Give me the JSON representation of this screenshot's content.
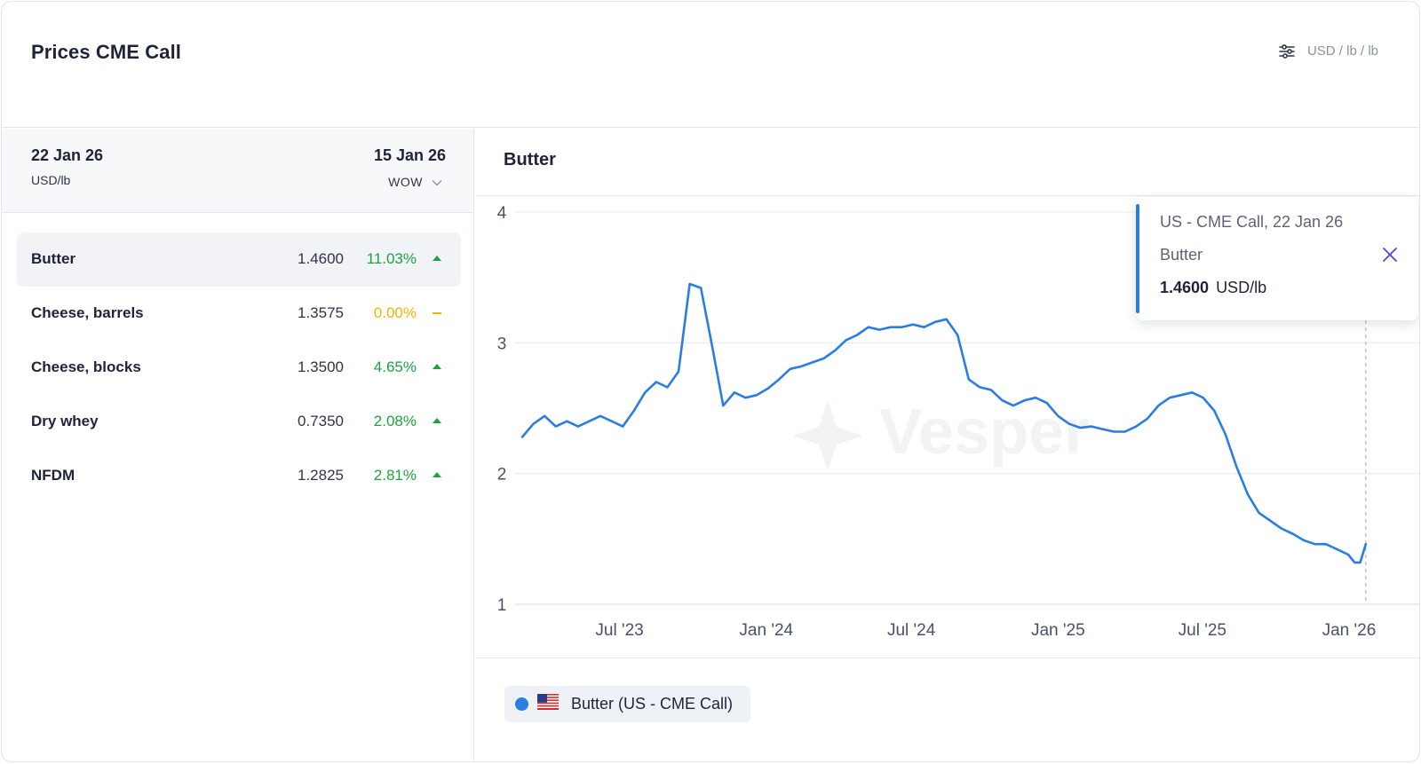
{
  "header": {
    "title": "Prices CME Call",
    "unit_label": "USD / lb / lb"
  },
  "table": {
    "current_date": "22 Jan 26",
    "unit": "USD/lb",
    "compare_date": "15 Jan 26",
    "compare_mode": "WOW",
    "rows": [
      {
        "name": "Butter",
        "price": "1.4600",
        "change": "11.03%",
        "trend": "up",
        "selected": true
      },
      {
        "name": "Cheese, barrels",
        "price": "1.3575",
        "change": "0.00%",
        "trend": "flat",
        "selected": false
      },
      {
        "name": "Cheese, blocks",
        "price": "1.3500",
        "change": "4.65%",
        "trend": "up",
        "selected": false
      },
      {
        "name": "Dry whey",
        "price": "0.7350",
        "change": "2.08%",
        "trend": "up",
        "selected": false
      },
      {
        "name": "NFDM",
        "price": "1.2825",
        "change": "2.81%",
        "trend": "up",
        "selected": false
      }
    ]
  },
  "chart_panel": {
    "title": "Butter",
    "watermark": "Vesper",
    "legend": {
      "label": "Butter (US - CME Call)",
      "color": "#2a7de1",
      "flag": "us-flag-icon"
    }
  },
  "tooltip": {
    "header": "US - CME Call, 22 Jan 26",
    "series": "Butter",
    "value": "1.4600",
    "unit": "USD/lb"
  },
  "colors": {
    "series": "#2a7de1",
    "up": "#1aa33f",
    "flat": "#f0b400",
    "close_icon": "#5b3fe0"
  },
  "chart_data": {
    "type": "line",
    "title": "Butter",
    "xlabel": "",
    "ylabel": "",
    "ylim": [
      1,
      4
    ],
    "yticks": [
      1,
      2,
      3,
      4
    ],
    "xlim": [
      "2023-02-20",
      "2026-01-30"
    ],
    "xtick_labels": [
      {
        "label": "Jul '23",
        "date": "2023-07-01"
      },
      {
        "label": "Jan '24",
        "date": "2024-01-01"
      },
      {
        "label": "Jul '24",
        "date": "2024-07-01"
      },
      {
        "label": "Jan '25",
        "date": "2025-01-01"
      },
      {
        "label": "Jul '25",
        "date": "2025-07-01"
      },
      {
        "label": "Jan '26",
        "date": "2026-01-01"
      }
    ],
    "grid": true,
    "series": [
      {
        "name": "Butter (US - CME Call)",
        "points": [
          [
            "2023-03-01",
            2.28
          ],
          [
            "2023-03-15",
            2.38
          ],
          [
            "2023-03-29",
            2.44
          ],
          [
            "2023-04-12",
            2.36
          ],
          [
            "2023-04-26",
            2.4
          ],
          [
            "2023-05-10",
            2.36
          ],
          [
            "2023-05-24",
            2.4
          ],
          [
            "2023-06-07",
            2.44
          ],
          [
            "2023-06-21",
            2.4
          ],
          [
            "2023-07-05",
            2.36
          ],
          [
            "2023-07-19",
            2.48
          ],
          [
            "2023-08-02",
            2.62
          ],
          [
            "2023-08-16",
            2.7
          ],
          [
            "2023-08-30",
            2.66
          ],
          [
            "2023-09-13",
            2.78
          ],
          [
            "2023-09-27",
            3.45
          ],
          [
            "2023-10-11",
            3.42
          ],
          [
            "2023-10-25",
            2.98
          ],
          [
            "2023-11-08",
            2.52
          ],
          [
            "2023-11-22",
            2.62
          ],
          [
            "2023-12-06",
            2.58
          ],
          [
            "2023-12-20",
            2.6
          ],
          [
            "2024-01-03",
            2.65
          ],
          [
            "2024-01-17",
            2.72
          ],
          [
            "2024-01-31",
            2.8
          ],
          [
            "2024-02-14",
            2.82
          ],
          [
            "2024-02-28",
            2.85
          ],
          [
            "2024-03-13",
            2.88
          ],
          [
            "2024-03-27",
            2.94
          ],
          [
            "2024-04-10",
            3.02
          ],
          [
            "2024-04-24",
            3.06
          ],
          [
            "2024-05-08",
            3.12
          ],
          [
            "2024-05-22",
            3.1
          ],
          [
            "2024-06-05",
            3.12
          ],
          [
            "2024-06-19",
            3.12
          ],
          [
            "2024-07-03",
            3.14
          ],
          [
            "2024-07-17",
            3.12
          ],
          [
            "2024-07-31",
            3.16
          ],
          [
            "2024-08-14",
            3.18
          ],
          [
            "2024-08-28",
            3.06
          ],
          [
            "2024-09-11",
            2.72
          ],
          [
            "2024-09-25",
            2.66
          ],
          [
            "2024-10-09",
            2.64
          ],
          [
            "2024-10-23",
            2.56
          ],
          [
            "2024-11-06",
            2.52
          ],
          [
            "2024-11-20",
            2.56
          ],
          [
            "2024-12-04",
            2.58
          ],
          [
            "2024-12-18",
            2.54
          ],
          [
            "2025-01-01",
            2.44
          ],
          [
            "2025-01-15",
            2.38
          ],
          [
            "2025-01-29",
            2.35
          ],
          [
            "2025-02-12",
            2.36
          ],
          [
            "2025-02-26",
            2.34
          ],
          [
            "2025-03-12",
            2.32
          ],
          [
            "2025-03-26",
            2.32
          ],
          [
            "2025-04-09",
            2.36
          ],
          [
            "2025-04-23",
            2.42
          ],
          [
            "2025-05-07",
            2.52
          ],
          [
            "2025-05-21",
            2.58
          ],
          [
            "2025-06-04",
            2.6
          ],
          [
            "2025-06-18",
            2.62
          ],
          [
            "2025-07-02",
            2.58
          ],
          [
            "2025-07-16",
            2.48
          ],
          [
            "2025-07-30",
            2.3
          ],
          [
            "2025-08-13",
            2.05
          ],
          [
            "2025-08-27",
            1.84
          ],
          [
            "2025-09-10",
            1.7
          ],
          [
            "2025-09-24",
            1.64
          ],
          [
            "2025-10-08",
            1.58
          ],
          [
            "2025-10-22",
            1.54
          ],
          [
            "2025-11-05",
            1.49
          ],
          [
            "2025-11-19",
            1.46
          ],
          [
            "2025-12-03",
            1.46
          ],
          [
            "2025-12-17",
            1.42
          ],
          [
            "2025-12-31",
            1.38
          ],
          [
            "2026-01-08",
            1.32
          ],
          [
            "2026-01-15",
            1.32
          ],
          [
            "2026-01-22",
            1.46
          ]
        ]
      }
    ],
    "highlight": {
      "date": "2026-01-22",
      "value": 1.46
    }
  }
}
